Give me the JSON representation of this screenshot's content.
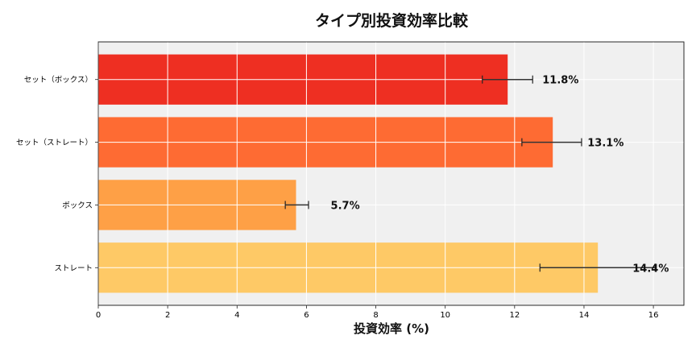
{
  "chart_data": {
    "type": "bar",
    "orientation": "horizontal",
    "title": "タイプ別投資効率比較",
    "xlabel": "投資効率 (%)",
    "ylabel": "",
    "categories": [
      "セット（ボックス）",
      "セット（ストレート）",
      "ボックス",
      "ストレート"
    ],
    "values": [
      11.8,
      13.1,
      5.7,
      14.4
    ],
    "error_low": [
      11.07,
      12.21,
      5.39,
      12.73
    ],
    "error_high": [
      12.52,
      13.93,
      6.06,
      16.05
    ],
    "data_labels": [
      "11.8%",
      "13.1%",
      "5.7%",
      "14.4%"
    ],
    "colors": [
      "#ee2f22",
      "#fe6b33",
      "#fea046",
      "#fec966"
    ],
    "xlim": [
      0,
      16.88
    ],
    "xticks": [
      0,
      2,
      4,
      6,
      8,
      10,
      12,
      14,
      16
    ],
    "grid": true,
    "background": "#f0f0f0",
    "legend": "none"
  }
}
